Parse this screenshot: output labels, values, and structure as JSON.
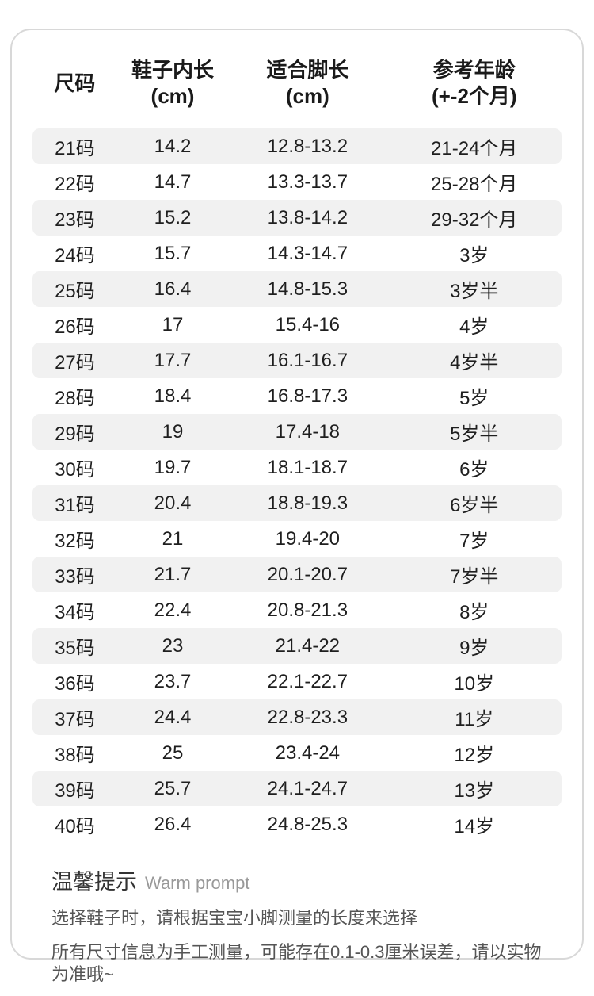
{
  "colors": {
    "stripe": "#f1f1f1",
    "card_border": "#d8d8d8",
    "text": "#222222",
    "muted_text": "#555555",
    "footer_en": "#999999"
  },
  "table": {
    "headers": [
      {
        "line1": "尺码",
        "line2": ""
      },
      {
        "line1": "鞋子内长",
        "line2": "(cm)"
      },
      {
        "line1": "适合脚长",
        "line2": "(cm)"
      },
      {
        "line1": "参考年龄",
        "line2": "(+-2个月)"
      }
    ],
    "rows": [
      [
        "21码",
        "14.2",
        "12.8-13.2",
        "21-24个月"
      ],
      [
        "22码",
        "14.7",
        "13.3-13.7",
        "25-28个月"
      ],
      [
        "23码",
        "15.2",
        "13.8-14.2",
        "29-32个月"
      ],
      [
        "24码",
        "15.7",
        "14.3-14.7",
        "3岁"
      ],
      [
        "25码",
        "16.4",
        "14.8-15.3",
        "3岁半"
      ],
      [
        "26码",
        "17",
        "15.4-16",
        "4岁"
      ],
      [
        "27码",
        "17.7",
        "16.1-16.7",
        "4岁半"
      ],
      [
        "28码",
        "18.4",
        "16.8-17.3",
        "5岁"
      ],
      [
        "29码",
        "19",
        "17.4-18",
        "5岁半"
      ],
      [
        "30码",
        "19.7",
        "18.1-18.7",
        "6岁"
      ],
      [
        "31码",
        "20.4",
        "18.8-19.3",
        "6岁半"
      ],
      [
        "32码",
        "21",
        "19.4-20",
        "7岁"
      ],
      [
        "33码",
        "21.7",
        "20.1-20.7",
        "7岁半"
      ],
      [
        "34码",
        "22.4",
        "20.8-21.3",
        "8岁"
      ],
      [
        "35码",
        "23",
        "21.4-22",
        "9岁"
      ],
      [
        "36码",
        "23.7",
        "22.1-22.7",
        "10岁"
      ],
      [
        "37码",
        "24.4",
        "22.8-23.3",
        "11岁"
      ],
      [
        "38码",
        "25",
        "23.4-24",
        "12岁"
      ],
      [
        "39码",
        "25.7",
        "24.1-24.7",
        "13岁"
      ],
      [
        "40码",
        "26.4",
        "24.8-25.3",
        "14岁"
      ]
    ]
  },
  "footer": {
    "title_cn": "温馨提示",
    "title_en": "Warm prompt",
    "line1": "选择鞋子时，请根据宝宝小脚测量的长度来选择",
    "line2": "所有尺寸信息为手工测量，可能存在0.1-0.3厘米误差，请以实物为准哦~"
  }
}
